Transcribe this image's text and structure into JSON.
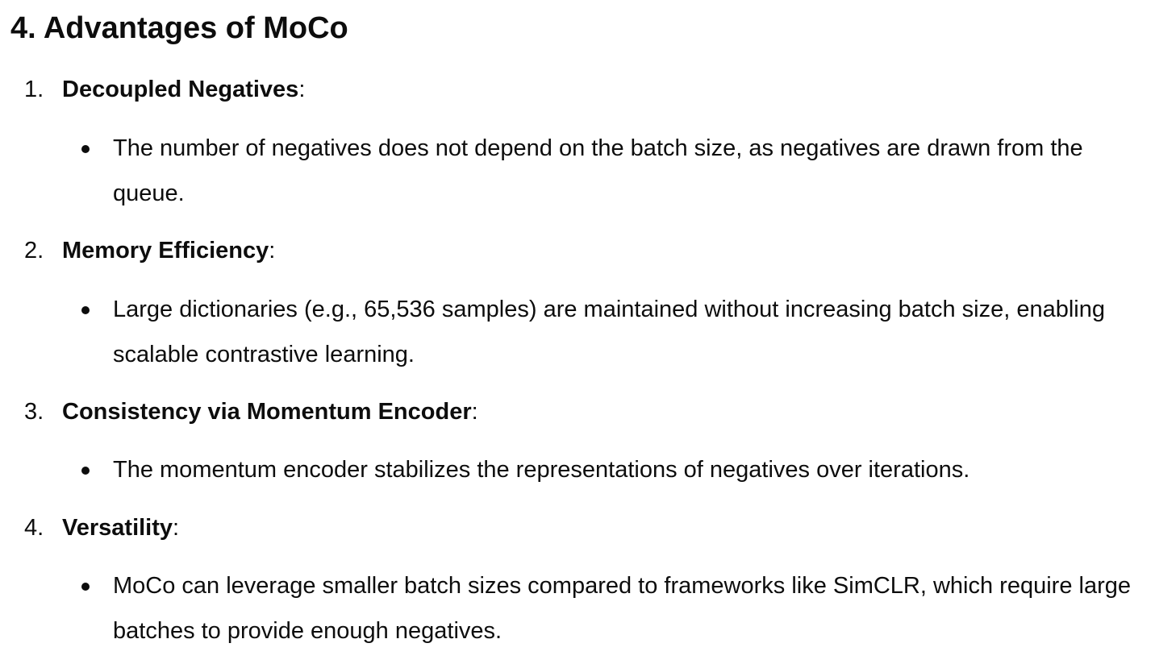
{
  "heading": "4. Advantages of MoCo",
  "items": [
    {
      "number": "1.",
      "title": "Decoupled Negatives",
      "colon": ":",
      "bullet": "The number of negatives does not depend on the batch size, as negatives are drawn from the queue."
    },
    {
      "number": "2.",
      "title": "Memory Efficiency",
      "colon": ":",
      "bullet": "Large dictionaries (e.g., 65,536 samples) are maintained without increasing batch size, enabling scalable contrastive learning."
    },
    {
      "number": "3.",
      "title": "Consistency via Momentum Encoder",
      "colon": ":",
      "bullet": "The momentum encoder stabilizes the representations of negatives over iterations."
    },
    {
      "number": "4.",
      "title": "Versatility",
      "colon": ":",
      "bullet": "MoCo can leverage smaller batch sizes compared to frameworks like SimCLR, which require large batches to provide enough negatives."
    }
  ]
}
